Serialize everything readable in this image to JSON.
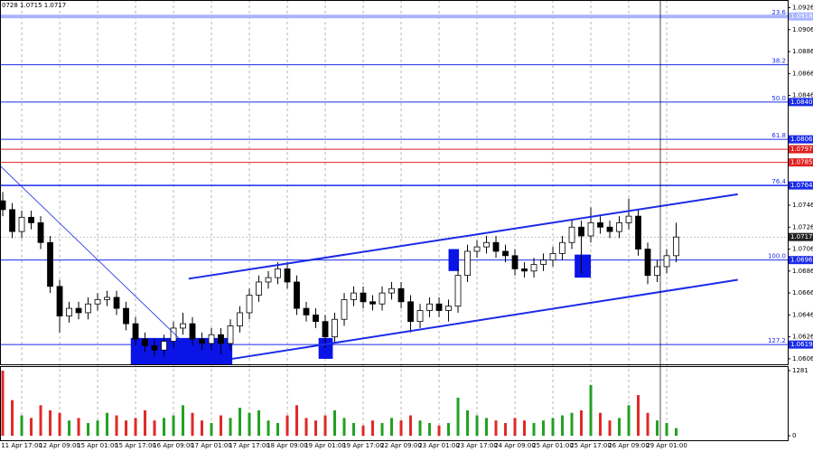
{
  "chart_data": [
    {
      "type": "candlestick",
      "title": "0728 1.0715 1.0717",
      "ylim": [
        1.0601,
        1.0933
      ],
      "xlim": [
        -0.29,
        82.76
      ],
      "yticks": [
        1.0926,
        1.0906,
        1.0886,
        1.0866,
        1.0846,
        1.0746,
        1.0726,
        1.0706,
        1.0686,
        1.0666,
        1.0646,
        1.0626,
        1.0606
      ],
      "categories": [
        null,
        null,
        "11 Apr 17:00",
        null,
        null,
        null,
        "12 Apr 09:00",
        null,
        null,
        null,
        "15 Apr 01:00",
        null,
        null,
        null,
        "15 Apr 17:00",
        null,
        null,
        null,
        "16 Apr 09:00",
        null,
        null,
        null,
        "17 Apr 01:00",
        null,
        null,
        null,
        "17 Apr 17:00",
        null,
        null,
        null,
        "18 Apr 09:00",
        null,
        null,
        null,
        "19 Apr 01:00",
        null,
        null,
        null,
        "19 Apr 17:00",
        null,
        null,
        null,
        "22 Apr 09:00",
        null,
        null,
        null,
        "23 Apr 01:00",
        null,
        null,
        null,
        "23 Apr 17:00",
        null,
        null,
        null,
        "24 Apr 09:00",
        null,
        null,
        null,
        "25 Apr 01:00",
        null,
        null,
        null,
        "25 Apr 17:00",
        null,
        null,
        null,
        "26 Apr 09:00",
        null,
        null,
        null,
        "29 Apr 01:00",
        null
      ],
      "open": [
        1.075,
        1.0742,
        1.0722,
        1.0735,
        1.073,
        1.0712,
        1.0672,
        1.0645,
        1.0652,
        1.0648,
        1.0656,
        1.066,
        1.0662,
        1.0652,
        1.0638,
        1.0624,
        1.0618,
        1.0614,
        1.0622,
        1.0634,
        1.0638,
        1.0624,
        1.062,
        1.0628,
        1.062,
        1.0636,
        1.0648,
        1.0664,
        1.0676,
        1.068,
        1.0688,
        1.0676,
        1.0652,
        1.0646,
        1.064,
        1.0626,
        1.0642,
        1.066,
        1.0666,
        1.0658,
        1.0656,
        1.0666,
        1.067,
        1.0658,
        1.064,
        1.065,
        1.0656,
        1.065,
        1.0654,
        1.0682,
        1.0704,
        1.0708,
        1.0712,
        1.0704,
        1.07,
        1.0688,
        1.0686,
        1.0692,
        1.0696,
        1.0702,
        1.0712,
        1.0726,
        1.0718,
        1.073,
        1.0726,
        1.0722,
        1.073,
        1.0736,
        1.0706,
        1.0682,
        1.069,
        1.07
      ],
      "high": [
        1.0758,
        1.0748,
        1.0741,
        1.0741,
        1.0736,
        1.0718,
        1.0678,
        1.0658,
        1.0658,
        1.0662,
        1.0666,
        1.0668,
        1.0668,
        1.0658,
        1.0644,
        1.063,
        1.0624,
        1.0628,
        1.064,
        1.0648,
        1.0644,
        1.063,
        1.0634,
        1.0634,
        1.0642,
        1.0654,
        1.067,
        1.0682,
        1.0686,
        1.0694,
        1.0694,
        1.0682,
        1.0658,
        1.0652,
        1.0646,
        1.0648,
        1.0666,
        1.0672,
        1.0672,
        1.0664,
        1.0672,
        1.0676,
        1.0676,
        1.0664,
        1.0656,
        1.0662,
        1.0662,
        1.066,
        1.0688,
        1.071,
        1.0714,
        1.0718,
        1.0718,
        1.071,
        1.0706,
        1.0694,
        1.0698,
        1.0702,
        1.0708,
        1.0718,
        1.0732,
        1.0732,
        1.0744,
        1.0736,
        1.0732,
        1.0736,
        1.0752,
        1.0742,
        1.0712,
        1.0696,
        1.0706,
        1.073
      ],
      "low": [
        1.0736,
        1.0716,
        1.0716,
        1.0724,
        1.0706,
        1.0666,
        1.063,
        1.0639,
        1.0642,
        1.0642,
        1.065,
        1.0654,
        1.0646,
        1.0632,
        1.0618,
        1.0612,
        1.0608,
        1.0608,
        1.0616,
        1.0628,
        1.0618,
        1.0614,
        1.0614,
        1.061,
        1.0614,
        1.063,
        1.0642,
        1.0658,
        1.067,
        1.0674,
        1.067,
        1.0646,
        1.064,
        1.0634,
        1.0616,
        1.062,
        1.0636,
        1.0654,
        1.0652,
        1.065,
        1.065,
        1.066,
        1.0652,
        1.063,
        1.0634,
        1.0644,
        1.0644,
        1.064,
        1.0648,
        1.0676,
        1.0698,
        1.0702,
        1.0698,
        1.0694,
        1.0682,
        1.068,
        1.068,
        1.0686,
        1.069,
        1.0696,
        1.0706,
        1.0684,
        1.0712,
        1.072,
        1.0716,
        1.0716,
        1.0724,
        1.07,
        1.0674,
        1.0676,
        1.0684,
        1.0694
      ],
      "close": [
        1.0742,
        1.0722,
        1.0735,
        1.073,
        1.0712,
        1.0672,
        1.0645,
        1.0652,
        1.0648,
        1.0656,
        1.066,
        1.0662,
        1.0652,
        1.0638,
        1.0624,
        1.0618,
        1.0614,
        1.0622,
        1.0634,
        1.0638,
        1.0624,
        1.062,
        1.0628,
        1.062,
        1.0636,
        1.0648,
        1.0664,
        1.0676,
        1.068,
        1.0688,
        1.0676,
        1.0652,
        1.0646,
        1.064,
        1.0626,
        1.0642,
        1.066,
        1.0666,
        1.0658,
        1.0656,
        1.0666,
        1.067,
        1.0658,
        1.064,
        1.065,
        1.0656,
        1.065,
        1.0654,
        1.0682,
        1.0704,
        1.0708,
        1.0712,
        1.0704,
        1.07,
        1.0688,
        1.0686,
        1.0692,
        1.0696,
        1.0702,
        1.0712,
        1.0726,
        1.0718,
        1.073,
        1.0726,
        1.0722,
        1.073,
        1.0736,
        1.0706,
        1.0682,
        1.069,
        1.07,
        1.0717
      ],
      "levels": [
        {
          "value": 1.0918,
          "label": "23.6",
          "tag": "1.0918",
          "color": "#aab4ff",
          "width": 4
        },
        {
          "value": 1.0874,
          "label": "38.2",
          "color": "#1a2be8",
          "width": 1
        },
        {
          "value": 1.084,
          "label": "50.0",
          "tag": "1.0840",
          "color": "#1a2be8",
          "width": 1
        },
        {
          "value": 1.0806,
          "label": "61.8",
          "tag": "1.0806",
          "color": "#1a2be8",
          "width": 1
        },
        {
          "value": 1.0797,
          "tag": "1.0797",
          "color": "#e02020",
          "width": 1
        },
        {
          "value": 1.0785,
          "tag": "1.0785",
          "color": "#e02020",
          "width": 1
        },
        {
          "value": 1.0764,
          "label": "76.4",
          "tag": "1.0764",
          "color": "#1a2be8",
          "width": 1.5
        },
        {
          "value": 1.0696,
          "label": "100.0",
          "tag": "1.0696",
          "color": "#1a2be8",
          "width": 1
        },
        {
          "value": 1.0619,
          "label": "127.2",
          "tag": "1.0619",
          "color": "#1a2be8",
          "width": 1
        },
        {
          "value": 1.0717,
          "tag": "1.0717",
          "color": "#999999",
          "width": 0.6,
          "dashed": true
        }
      ],
      "trendlines": [
        {
          "x": [
            19.6,
            77.5
          ],
          "y": [
            1.0679,
            1.0756
          ],
          "color": "#1a2be8",
          "width": 2
        },
        {
          "x": [
            24.2,
            77.5
          ],
          "y": [
            1.0606,
            1.0678
          ],
          "color": "#1a2be8",
          "width": 2
        },
        {
          "x": [
            -0.29,
            18.8
          ],
          "y": [
            1.0782,
            1.0623
          ],
          "color": "#1a2be8",
          "width": 0.8
        }
      ],
      "zones": [
        {
          "x": [
            13.5,
            24.2
          ],
          "y": [
            1.0601,
            1.0625
          ],
          "color": "#0a14e6"
        },
        {
          "x": [
            33.3,
            34.8
          ],
          "y": [
            1.0606,
            1.0625
          ],
          "color": "#0a14e6"
        },
        {
          "x": [
            47.0,
            48.1
          ],
          "y": [
            1.0686,
            1.0706
          ],
          "color": "#0a14e6"
        },
        {
          "x": [
            60.3,
            62.0
          ],
          "y": [
            1.068,
            1.0701
          ],
          "color": "#0a14e6"
        }
      ]
    },
    {
      "type": "volume",
      "ylim": [
        0,
        1281
      ],
      "yticks": [
        1281,
        0
      ],
      "up_color": "#22a022",
      "down_color": "#e02828",
      "values": [
        1281,
        700,
        400,
        350,
        600,
        500,
        450,
        300,
        350,
        250,
        300,
        450,
        400,
        300,
        350,
        500,
        300,
        350,
        400,
        600,
        450,
        300,
        250,
        400,
        350,
        550,
        450,
        500,
        300,
        250,
        400,
        600,
        350,
        300,
        400,
        500,
        350,
        250,
        200,
        300,
        250,
        350,
        300,
        400,
        300,
        250,
        200,
        250,
        750,
        500,
        400,
        350,
        300,
        250,
        350,
        300,
        250,
        300,
        350,
        400,
        450,
        500,
        1000,
        450,
        300,
        350,
        600,
        800,
        450,
        300,
        250,
        150
      ]
    }
  ]
}
